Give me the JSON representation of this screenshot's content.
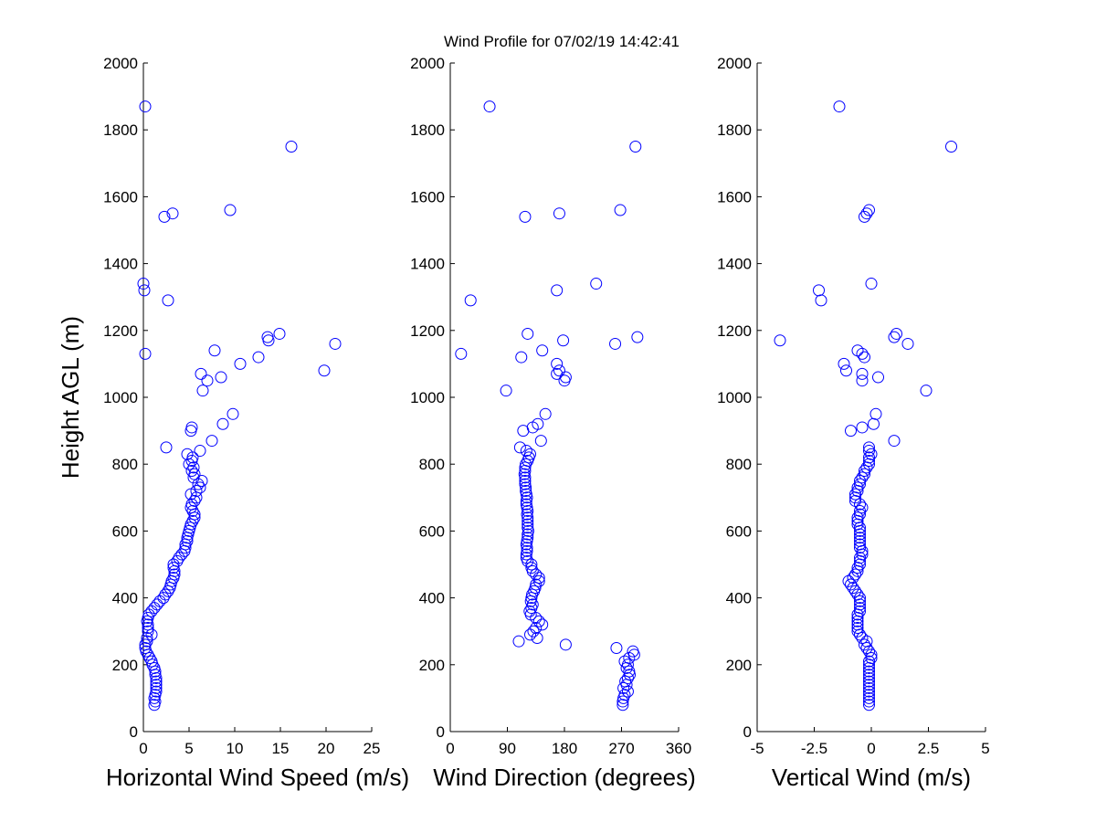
{
  "chart_data": {
    "type": "scatter",
    "title": "Wind Profile for  07/02/19 14:42:41",
    "ylabel": "Height AGL (m)",
    "ylim": [
      0,
      2000
    ],
    "yticks": [
      0,
      200,
      400,
      600,
      800,
      1000,
      1200,
      1400,
      1600,
      1800,
      2000
    ],
    "ytick_labels": [
      "0",
      "200",
      "400",
      "600",
      "800",
      "1000",
      "1200",
      "1400",
      "1600",
      "1800",
      "2000"
    ],
    "marker_color": "#0000ff",
    "marker": "open-circle",
    "grid": false,
    "heights": [
      80,
      90,
      100,
      110,
      120,
      130,
      140,
      150,
      160,
      170,
      180,
      190,
      200,
      210,
      220,
      230,
      240,
      250,
      260,
      270,
      280,
      290,
      300,
      310,
      320,
      330,
      340,
      350,
      360,
      370,
      380,
      390,
      400,
      410,
      420,
      430,
      440,
      450,
      460,
      470,
      480,
      490,
      500,
      510,
      520,
      530,
      540,
      550,
      560,
      570,
      580,
      590,
      600,
      610,
      620,
      630,
      640,
      650,
      660,
      670,
      680,
      690,
      700,
      710,
      720,
      730,
      740,
      750,
      760,
      770,
      780,
      790,
      800,
      810,
      820,
      830,
      840,
      850,
      870,
      900,
      910,
      920,
      950,
      1020,
      1050,
      1060,
      1070,
      1080,
      1100,
      1120,
      1130,
      1140,
      1160,
      1170,
      1180,
      1190,
      1290,
      1320,
      1340,
      1540,
      1550,
      1560,
      1750,
      1870
    ],
    "panels": [
      {
        "xlabel": "Horizontal Wind Speed (m/s)",
        "xlim": [
          0,
          25
        ],
        "xticks": [
          0,
          5,
          10,
          15,
          20,
          25
        ],
        "xtick_labels": [
          "0",
          "5",
          "10",
          "15",
          "20",
          "25"
        ],
        "values": [
          1.2,
          1.3,
          1.2,
          1.3,
          1.4,
          1.4,
          1.4,
          1.4,
          1.4,
          1.3,
          1.3,
          1.2,
          1.0,
          0.9,
          0.7,
          0.5,
          0.3,
          0.2,
          0.2,
          0.4,
          0.4,
          0.9,
          0.5,
          0.5,
          0.5,
          0.4,
          0.5,
          0.6,
          0.9,
          1.2,
          1.5,
          1.8,
          2.2,
          2.4,
          2.7,
          2.9,
          3.0,
          3.1,
          3.3,
          3.4,
          3.4,
          3.3,
          3.3,
          3.7,
          3.9,
          4.2,
          4.5,
          4.6,
          4.6,
          4.8,
          4.8,
          4.9,
          5.0,
          5.1,
          5.2,
          5.4,
          5.6,
          5.6,
          5.4,
          5.2,
          5.3,
          5.6,
          5.8,
          5.2,
          5.8,
          6.2,
          6.0,
          6.4,
          5.5,
          5.6,
          5.3,
          5.5,
          5.0,
          5.3,
          5.4,
          4.8,
          6.2,
          2.5,
          7.5,
          5.2,
          5.3,
          8.7,
          9.8,
          6.5,
          7.0,
          8.5,
          6.3,
          19.8,
          10.6,
          12.6,
          0.2,
          7.8,
          21.0,
          13.7,
          13.6,
          14.9,
          2.7,
          0.1,
          0.0,
          2.3,
          3.2,
          9.5,
          16.2,
          0.2
        ]
      },
      {
        "xlabel": "Wind Direction (degrees)",
        "xlim": [
          0,
          360
        ],
        "xticks": [
          0,
          90,
          180,
          270,
          360
        ],
        "xtick_labels": [
          "0",
          "90",
          "180",
          "270",
          "360"
        ],
        "values": [
          272,
          272,
          273,
          275,
          280,
          273,
          278,
          276,
          280,
          283,
          282,
          278,
          280,
          275,
          282,
          290,
          288,
          262,
          182,
          108,
          137,
          126,
          131,
          135,
          145,
          140,
          135,
          127,
          125,
          128,
          130,
          127,
          128,
          129,
          132,
          134,
          135,
          140,
          140,
          135,
          130,
          128,
          128,
          122,
          120,
          120,
          121,
          121,
          120,
          121,
          122,
          122,
          123,
          122,
          122,
          122,
          122,
          121,
          122,
          121,
          120,
          120,
          121,
          120,
          119,
          119,
          118,
          118,
          118,
          117,
          118,
          118,
          119,
          122,
          124,
          126,
          120,
          110,
          143,
          115,
          130,
          138,
          150,
          88,
          180,
          182,
          168,
          172,
          168,
          112,
          17,
          145,
          260,
          178,
          295,
          122,
          32,
          168,
          230,
          118,
          172,
          268,
          292,
          62
        ]
      },
      {
        "xlabel": "Vertical Wind (m/s)",
        "xlim": [
          -5,
          5
        ],
        "xticks": [
          -5,
          -2.5,
          0,
          2.5,
          5
        ],
        "xtick_labels": [
          "-5",
          "-2.5",
          "0",
          "2.5",
          "5"
        ],
        "values": [
          -0.1,
          -0.1,
          -0.1,
          -0.1,
          -0.1,
          -0.1,
          -0.1,
          -0.1,
          -0.1,
          -0.1,
          -0.1,
          -0.1,
          -0.1,
          -0.1,
          0.0,
          0.0,
          -0.1,
          -0.2,
          -0.3,
          -0.2,
          -0.4,
          -0.5,
          -0.6,
          -0.6,
          -0.6,
          -0.6,
          -0.6,
          -0.6,
          -0.5,
          -0.5,
          -0.5,
          -0.5,
          -0.5,
          -0.6,
          -0.7,
          -0.8,
          -0.9,
          -1.0,
          -0.8,
          -0.7,
          -0.6,
          -0.6,
          -0.5,
          -0.5,
          -0.5,
          -0.4,
          -0.4,
          -0.5,
          -0.5,
          -0.5,
          -0.5,
          -0.5,
          -0.5,
          -0.5,
          -0.6,
          -0.6,
          -0.6,
          -0.5,
          -0.5,
          -0.4,
          -0.5,
          -0.7,
          -0.7,
          -0.7,
          -0.6,
          -0.6,
          -0.5,
          -0.5,
          -0.4,
          -0.3,
          -0.3,
          -0.2,
          -0.1,
          -0.1,
          -0.1,
          0.0,
          -0.1,
          -0.1,
          1.0,
          -0.9,
          -0.4,
          0.1,
          0.2,
          2.4,
          -0.4,
          0.3,
          -0.4,
          -1.1,
          -1.2,
          -0.3,
          -0.4,
          -0.6,
          1.6,
          -4.0,
          1.0,
          1.1,
          -2.2,
          -2.3,
          0.0,
          -0.3,
          -0.2,
          -0.1,
          3.5,
          -1.4
        ]
      }
    ]
  }
}
